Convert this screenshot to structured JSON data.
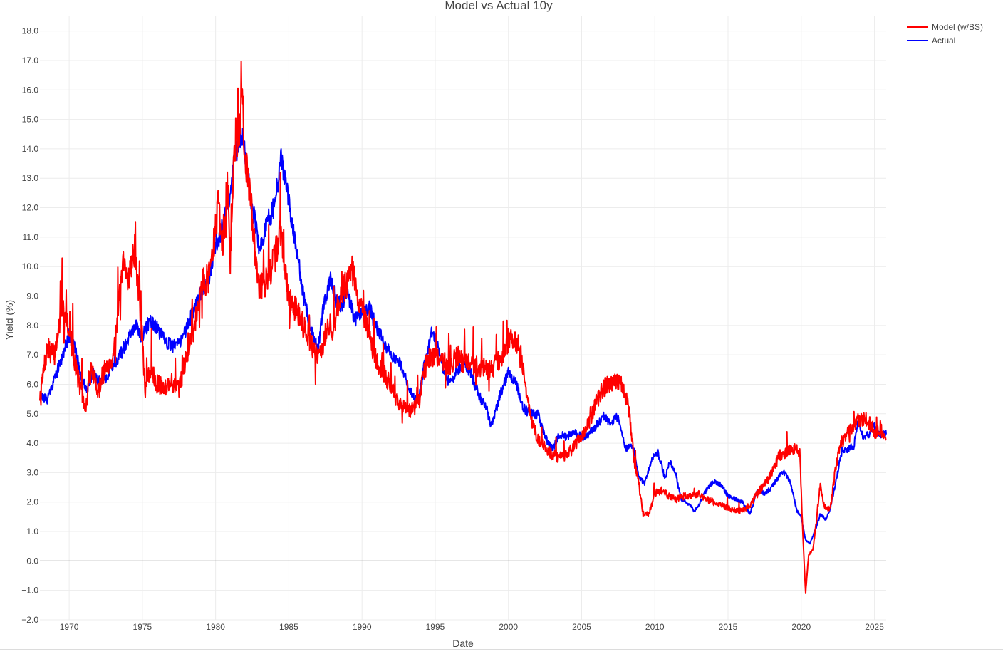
{
  "chart_data": {
    "type": "line",
    "title": "Model vs Actual 10y",
    "xlabel": "Date",
    "ylabel": "Yield (%)",
    "xlim": [
      1968.0,
      2025.8
    ],
    "ylim": [
      -2.0,
      18.5
    ],
    "x_ticks": [
      1970,
      1975,
      1980,
      1985,
      1990,
      1995,
      2000,
      2005,
      2010,
      2015,
      2020,
      2025
    ],
    "x_tick_labels": [
      "1970",
      "1975",
      "1980",
      "1985",
      "1990",
      "1995",
      "2000",
      "2005",
      "2010",
      "2015",
      "2020",
      "2025"
    ],
    "y_ticks": [
      -2,
      -1,
      0,
      1,
      2,
      3,
      4,
      5,
      6,
      7,
      8,
      9,
      10,
      11,
      12,
      13,
      14,
      15,
      16,
      17,
      18
    ],
    "y_tick_labels": [
      "−2.0",
      "−1.0",
      "0.0",
      "1.0",
      "2.0",
      "3.0",
      "4.0",
      "5.0",
      "6.0",
      "7.0",
      "8.0",
      "9.0",
      "10.0",
      "11.0",
      "12.0",
      "13.0",
      "14.0",
      "15.0",
      "16.0",
      "17.0",
      "18.0"
    ],
    "grid": true,
    "zero_line": true,
    "legend_position": "top-right",
    "series": [
      {
        "name": "Model (w/BS)",
        "color": "#ff0000",
        "x": [
          1968.0,
          1968.5,
          1969.0,
          1969.5,
          1969.8,
          1970.3,
          1970.7,
          1971.1,
          1971.5,
          1972.0,
          1972.5,
          1973.0,
          1973.4,
          1973.7,
          1974.0,
          1974.5,
          1974.9,
          1975.2,
          1975.6,
          1976.0,
          1976.5,
          1977.0,
          1977.5,
          1978.0,
          1978.5,
          1979.0,
          1979.5,
          1979.9,
          1980.2,
          1980.5,
          1980.8,
          1981.0,
          1981.3,
          1981.6,
          1981.8,
          1982.0,
          1982.3,
          1982.7,
          1983.0,
          1983.5,
          1984.0,
          1984.4,
          1984.7,
          1985.0,
          1985.5,
          1986.0,
          1986.5,
          1986.8,
          1987.0,
          1987.3,
          1987.7,
          1988.0,
          1988.5,
          1989.0,
          1989.3,
          1989.6,
          1990.0,
          1990.5,
          1991.0,
          1991.5,
          1992.0,
          1992.5,
          1993.0,
          1993.5,
          1993.9,
          1994.3,
          1994.7,
          1995.0,
          1995.5,
          1996.0,
          1996.5,
          1997.0,
          1997.5,
          1998.0,
          1998.5,
          1999.0,
          1999.5,
          2000.0,
          2000.3,
          2000.8,
          2001.2,
          2001.6,
          2002.0,
          2002.5,
          2003.0,
          2003.5,
          2004.0,
          2004.5,
          2005.0,
          2005.5,
          2006.0,
          2006.5,
          2007.0,
          2007.5,
          2007.8,
          2008.2,
          2008.6,
          2008.9,
          2009.2,
          2009.6,
          2010.0,
          2010.5,
          2011.0,
          2011.5,
          2012.0,
          2012.5,
          2013.0,
          2013.5,
          2014.0,
          2014.5,
          2015.0,
          2015.5,
          2016.0,
          2016.5,
          2017.0,
          2017.5,
          2018.0,
          2018.5,
          2019.0,
          2019.5,
          2019.9,
          2020.1,
          2020.3,
          2020.5,
          2020.8,
          2021.0,
          2021.3,
          2021.6,
          2022.0,
          2022.3,
          2022.7,
          2023.0,
          2023.5,
          2024.0,
          2024.5,
          2025.0,
          2025.5,
          2025.8
        ],
        "y": [
          5.6,
          7.2,
          7.0,
          8.6,
          8.4,
          7.0,
          6.0,
          5.1,
          6.5,
          5.8,
          6.6,
          6.9,
          8.7,
          10.0,
          9.6,
          10.6,
          8.2,
          5.8,
          6.6,
          6.0,
          5.9,
          6.1,
          5.8,
          7.0,
          7.8,
          9.4,
          9.6,
          10.8,
          12.3,
          10.5,
          12.8,
          10.2,
          14.2,
          14.6,
          16.0,
          13.5,
          12.7,
          10.6,
          9.3,
          9.5,
          10.2,
          11.2,
          10.2,
          8.8,
          8.6,
          8.0,
          7.4,
          7.0,
          7.0,
          7.3,
          8.0,
          7.8,
          9.0,
          9.5,
          10.0,
          9.2,
          8.5,
          7.6,
          6.8,
          6.4,
          5.9,
          5.3,
          5.2,
          5.1,
          5.4,
          6.6,
          7.0,
          6.9,
          6.8,
          6.6,
          7.0,
          6.7,
          6.7,
          6.6,
          6.5,
          6.6,
          6.9,
          7.5,
          7.6,
          7.3,
          5.7,
          4.8,
          4.1,
          3.9,
          3.6,
          3.5,
          3.6,
          3.9,
          4.2,
          4.7,
          5.4,
          5.9,
          6.0,
          6.1,
          6.0,
          5.2,
          3.4,
          2.6,
          1.6,
          1.6,
          2.3,
          2.4,
          2.2,
          2.1,
          2.2,
          2.2,
          2.3,
          2.1,
          2.0,
          1.9,
          1.8,
          1.7,
          1.7,
          1.9,
          2.3,
          2.6,
          3.0,
          3.6,
          3.7,
          3.8,
          3.7,
          1.0,
          -1.1,
          0.2,
          0.4,
          1.2,
          2.6,
          1.8,
          1.8,
          3.0,
          4.0,
          4.2,
          4.6,
          4.8,
          4.8,
          4.4,
          4.4,
          4.1
        ]
      },
      {
        "name": "Actual",
        "color": "#0000ff",
        "x": [
          1968.0,
          1968.5,
          1969.0,
          1969.5,
          1970.0,
          1970.4,
          1970.8,
          1971.2,
          1971.6,
          1972.0,
          1972.5,
          1973.0,
          1973.5,
          1974.0,
          1974.5,
          1975.0,
          1975.5,
          1976.0,
          1976.5,
          1977.0,
          1977.5,
          1978.0,
          1978.5,
          1979.0,
          1979.5,
          1980.0,
          1980.3,
          1980.7,
          1981.0,
          1981.3,
          1981.6,
          1981.9,
          1982.2,
          1982.6,
          1983.0,
          1983.5,
          1984.0,
          1984.5,
          1984.8,
          1985.2,
          1985.6,
          1986.0,
          1986.5,
          1987.0,
          1987.3,
          1987.8,
          1988.2,
          1988.6,
          1989.0,
          1989.5,
          1990.0,
          1990.5,
          1991.0,
          1991.5,
          1992.0,
          1992.5,
          1993.0,
          1993.5,
          1993.9,
          1994.3,
          1994.8,
          1995.2,
          1995.6,
          1996.0,
          1996.5,
          1997.0,
          1997.5,
          1998.0,
          1998.5,
          1998.8,
          1999.2,
          1999.6,
          2000.0,
          2000.5,
          2001.0,
          2001.5,
          2002.0,
          2002.5,
          2003.0,
          2003.5,
          2004.0,
          2004.5,
          2005.0,
          2005.5,
          2006.0,
          2006.5,
          2007.0,
          2007.5,
          2008.0,
          2008.5,
          2008.9,
          2009.3,
          2009.8,
          2010.2,
          2010.7,
          2011.0,
          2011.4,
          2011.8,
          2012.2,
          2012.7,
          2013.0,
          2013.5,
          2014.0,
          2014.5,
          2015.0,
          2015.5,
          2016.0,
          2016.5,
          2017.0,
          2017.5,
          2018.0,
          2018.5,
          2018.9,
          2019.3,
          2019.7,
          2020.0,
          2020.3,
          2020.6,
          2021.0,
          2021.3,
          2021.7,
          2022.0,
          2022.4,
          2022.8,
          2023.2,
          2023.6,
          2023.9,
          2024.2,
          2024.6,
          2025.0,
          2025.4,
          2025.8
        ],
        "y": [
          5.6,
          5.5,
          6.2,
          6.9,
          7.7,
          7.2,
          6.3,
          5.8,
          6.4,
          6.1,
          6.2,
          6.7,
          7.0,
          7.5,
          8.0,
          7.6,
          8.2,
          7.9,
          7.5,
          7.3,
          7.4,
          7.9,
          8.5,
          9.2,
          9.4,
          10.8,
          11.0,
          11.8,
          12.6,
          13.8,
          14.2,
          14.5,
          13.0,
          11.8,
          10.5,
          11.5,
          12.0,
          13.7,
          12.8,
          11.5,
          10.4,
          9.0,
          7.8,
          7.2,
          8.5,
          9.6,
          8.9,
          8.7,
          9.1,
          8.2,
          8.5,
          8.6,
          7.9,
          7.4,
          7.0,
          6.8,
          6.2,
          5.6,
          5.5,
          6.8,
          7.8,
          7.2,
          6.4,
          6.0,
          6.5,
          6.7,
          6.3,
          5.6,
          5.2,
          4.6,
          5.2,
          5.9,
          6.4,
          6.1,
          5.2,
          5.0,
          5.0,
          4.2,
          3.8,
          4.3,
          4.2,
          4.4,
          4.2,
          4.3,
          4.6,
          4.9,
          4.7,
          4.9,
          3.8,
          3.9,
          2.9,
          2.6,
          3.5,
          3.7,
          2.8,
          3.4,
          3.0,
          2.1,
          2.0,
          1.7,
          1.9,
          2.4,
          2.7,
          2.6,
          2.2,
          2.1,
          2.0,
          1.6,
          2.4,
          2.3,
          2.5,
          2.9,
          3.0,
          2.6,
          1.7,
          1.5,
          0.7,
          0.6,
          1.1,
          1.6,
          1.4,
          1.8,
          2.8,
          3.8,
          3.8,
          3.9,
          4.8,
          4.2,
          4.3,
          4.6,
          4.3,
          4.3
        ]
      }
    ]
  }
}
